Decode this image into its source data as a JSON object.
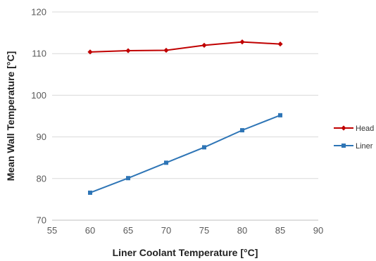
{
  "chart_data": {
    "type": "line",
    "title": "",
    "xlabel": "Liner Coolant Temperature [°C]",
    "ylabel": "Mean Wall Temperature [°C]",
    "xlim": [
      55,
      90
    ],
    "ylim": [
      70,
      120
    ],
    "x_ticks": [
      55,
      60,
      65,
      70,
      75,
      80,
      85,
      90
    ],
    "y_ticks": [
      70,
      80,
      90,
      100,
      110,
      120
    ],
    "grid": "horizontal",
    "legend_position": "right",
    "x": [
      60,
      65,
      70,
      75,
      80,
      85
    ],
    "series": [
      {
        "name": "Head",
        "values": [
          110.4,
          110.7,
          110.8,
          112.0,
          112.8,
          112.3
        ],
        "color": "#c00000",
        "marker": "diamond"
      },
      {
        "name": "Liner",
        "values": [
          76.6,
          80.1,
          83.8,
          87.5,
          91.6,
          95.2
        ],
        "color": "#2e75b6",
        "marker": "square"
      }
    ]
  }
}
